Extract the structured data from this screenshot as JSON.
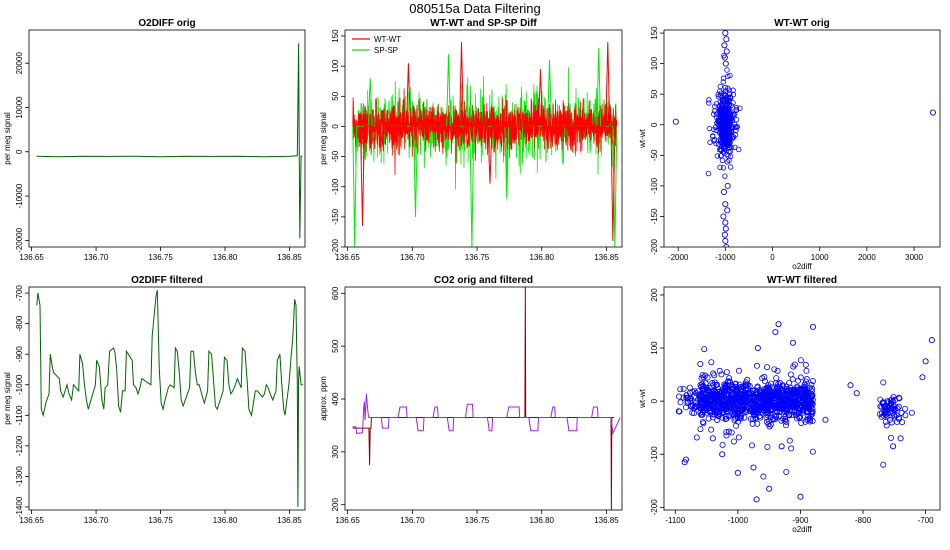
{
  "figure": {
    "title": "080515a   Data Filtering"
  },
  "colors": {
    "green": "#006400",
    "red": "#ff0000",
    "lime": "#00ee00",
    "blue": "#0000ff",
    "purple": "#a020f0",
    "darkred": "#8b0000",
    "axis": "#000000"
  },
  "chart_data": [
    {
      "id": "p1",
      "type": "line",
      "title": "O2DIFF orig",
      "xlabel": "",
      "ylabel": "per meg signal",
      "xlim": [
        136.648,
        136.862
      ],
      "ylim": [
        -21500,
        27500
      ],
      "xticks": [
        136.65,
        136.7,
        136.75,
        136.8,
        136.85
      ],
      "xtick_labels": [
        "136.65",
        "136.70",
        "136.75",
        "136.80",
        "136.85"
      ],
      "yticks": [
        -20000,
        -10000,
        0,
        10000,
        20000
      ],
      "ytick_labels": [
        "-20000",
        "-10000",
        "0",
        "10000",
        "20000"
      ],
      "series": [
        {
          "name": "O2DIFF",
          "color": "#006400",
          "x": [
            136.654,
            136.67,
            136.69,
            136.71,
            136.73,
            136.75,
            136.77,
            136.79,
            136.81,
            136.83,
            136.85,
            136.856,
            136.857,
            136.858,
            136.859,
            136.86
          ],
          "y": [
            -1000,
            -1100,
            -1000,
            -1050,
            -1000,
            -1100,
            -1000,
            -1050,
            -1000,
            -1100,
            -1000,
            -900,
            24500,
            -19500,
            -1000,
            -950
          ]
        }
      ]
    },
    {
      "id": "p2",
      "type": "line",
      "title": "WT-WT and SP-SP Diff",
      "xlabel": "",
      "ylabel": "per meg signal",
      "xlim": [
        136.648,
        136.862
      ],
      "ylim": [
        -200,
        160
      ],
      "xticks": [
        136.65,
        136.7,
        136.75,
        136.8,
        136.85
      ],
      "xtick_labels": [
        "136.65",
        "136.70",
        "136.75",
        "136.80",
        "136.85"
      ],
      "yticks": [
        -200,
        -150,
        -100,
        -50,
        0,
        50,
        100,
        150
      ],
      "ytick_labels": [
        "-200",
        "-150",
        "-100",
        "-50",
        "0",
        "50",
        "100",
        "150"
      ],
      "legend": {
        "position": "top-left",
        "entries": [
          "WT-WT",
          "SP-SP"
        ]
      },
      "series": [
        {
          "name": "SP-SP",
          "color": "#00ee00",
          "x": [
            136.654,
            136.6555,
            136.657,
            136.666,
            136.6675,
            136.669,
            136.701,
            136.7025,
            136.704,
            136.7265,
            136.728,
            136.7295,
            136.7445,
            136.746,
            136.7475,
            136.7715,
            136.773,
            136.7745,
            136.8045,
            136.806,
            136.8075,
            136.8425,
            136.844,
            136.8455,
            136.855,
            136.8565,
            136.858
          ],
          "y": [
            0,
            -200,
            0,
            0,
            80,
            0,
            0,
            -150,
            0,
            0,
            120,
            0,
            0,
            -200,
            0,
            0,
            -120,
            0,
            0,
            110,
            0,
            0,
            130,
            0,
            0,
            -200,
            0
          ]
        },
        {
          "name": "WT-WT",
          "color": "#ff0000",
          "x": [
            136.66,
            136.6615,
            136.663,
            136.6955,
            136.697,
            136.6985,
            136.7365,
            136.738,
            136.7395,
            136.7585,
            136.76,
            136.7615,
            136.7975,
            136.799,
            136.8005,
            136.8495,
            136.851,
            136.8525,
            136.8535,
            136.855,
            136.8565
          ],
          "y": [
            0,
            -165,
            0,
            0,
            105,
            0,
            0,
            140,
            0,
            0,
            -95,
            0,
            0,
            95,
            0,
            0,
            140,
            0,
            0,
            -190,
            0
          ]
        }
      ]
    },
    {
      "id": "p3",
      "type": "scatter",
      "title": "WT-WT orig",
      "xlabel": "o2diff",
      "ylabel": "wt-wt",
      "xlim": [
        -2300,
        3550
      ],
      "ylim": [
        -200,
        155
      ],
      "xticks": [
        -2000,
        -1000,
        0,
        1000,
        2000,
        3000
      ],
      "xtick_labels": [
        "-2000",
        "-1000",
        "0",
        "1000",
        "2000",
        "3000"
      ],
      "yticks": [
        -200,
        -150,
        -100,
        -50,
        0,
        50,
        100,
        150
      ],
      "ytick_labels": [
        "-200",
        "-150",
        "-100",
        "-50",
        "0",
        "50",
        "100",
        "150"
      ],
      "series": [
        {
          "name": "wt-wt vs o2diff",
          "color": "#0000ff",
          "x": [
            -2050,
            3400,
            -1000,
            -980,
            -1020,
            -970,
            -1010,
            -990,
            -950,
            -1030,
            -1000,
            -960,
            -1040,
            -1000,
            -990,
            -1010,
            -1000,
            -980
          ],
          "y": [
            5,
            20,
            150,
            140,
            130,
            120,
            110,
            100,
            -100,
            -110,
            -130,
            -140,
            -150,
            -160,
            -170,
            -180,
            -190,
            -200
          ]
        }
      ]
    },
    {
      "id": "p4",
      "type": "line",
      "title": "O2DIFF filtered",
      "xlabel": "",
      "ylabel": "per meg signal",
      "xlim": [
        136.648,
        136.862
      ],
      "ylim": [
        -1410,
        -680
      ],
      "xticks": [
        136.65,
        136.7,
        136.75,
        136.8,
        136.85
      ],
      "xtick_labels": [
        "136.65",
        "136.70",
        "136.75",
        "136.80",
        "136.85"
      ],
      "yticks": [
        -1400,
        -1300,
        -1200,
        -1100,
        -1000,
        -900,
        -800,
        -700
      ],
      "ytick_labels": [
        "-1400",
        "-1300",
        "-1200",
        "-1100",
        "-1000",
        "-900",
        "-800",
        "-700"
      ],
      "series": [
        {
          "name": "O2DIFF filtered",
          "color": "#006400",
          "x": [
            136.654,
            136.655,
            136.6565,
            136.6575,
            136.659,
            136.661,
            136.6635,
            136.6645,
            136.666,
            136.667,
            136.6715,
            136.6725,
            136.6745,
            136.676,
            136.6775,
            136.679,
            136.681,
            136.6825,
            136.6865,
            136.6875,
            136.6895,
            136.691,
            136.6925,
            136.694,
            136.6995,
            136.7005,
            136.7025,
            136.7045,
            136.706,
            136.707,
            136.709,
            136.7105,
            136.7135,
            136.7145,
            136.716,
            136.7175,
            136.719,
            136.7205,
            136.7225,
            136.7235,
            136.728,
            136.729,
            136.731,
            136.7325,
            136.734,
            136.7355,
            136.7425,
            136.7435,
            136.7465,
            136.7475,
            136.749,
            136.7505,
            136.752,
            136.7535,
            136.756,
            136.7575,
            136.7605,
            136.7615,
            136.763,
            136.7645,
            136.766,
            136.7675,
            136.7725,
            136.7735,
            136.7755,
            136.777,
            136.7785,
            136.78,
            136.7825,
            136.784,
            136.7865,
            136.7875,
            136.7895,
            136.791,
            136.7925,
            136.794,
            136.7985,
            136.7995,
            136.8015,
            136.803,
            136.8045,
            136.806,
            136.808,
            136.8095,
            136.8125,
            136.8135,
            136.8155,
            136.817,
            136.8185,
            136.8205,
            136.8235,
            136.825,
            136.829,
            136.8305,
            136.832,
            136.8335,
            136.835,
            136.837,
            136.8395,
            136.8405,
            136.8425,
            136.844,
            136.8455,
            136.8465,
            136.848,
            136.8495,
            136.851,
            136.8525,
            136.854,
            136.855,
            136.8555,
            136.856,
            136.8565,
            136.857,
            136.8575,
            136.859,
            136.8605
          ],
          "y": [
            -740,
            -700,
            -740,
            -1080,
            -1100,
            -1060,
            -1030,
            -900,
            -940,
            -960,
            -980,
            -1020,
            -1040,
            -1020,
            -1000,
            -1030,
            -1050,
            -1000,
            -1020,
            -900,
            -930,
            -1000,
            -1050,
            -1080,
            -1000,
            -920,
            -940,
            -1050,
            -1080,
            -1010,
            -1000,
            -890,
            -880,
            -890,
            -950,
            -1070,
            -1090,
            -1020,
            -1020,
            -890,
            -920,
            -1000,
            -1010,
            -1030,
            -1010,
            -980,
            -1000,
            -840,
            -710,
            -690,
            -950,
            -1060,
            -1080,
            -1050,
            -1010,
            -1000,
            -1010,
            -880,
            -890,
            -960,
            -1050,
            -1070,
            -1010,
            -890,
            -890,
            -960,
            -1000,
            -1000,
            -1040,
            -1060,
            -1020,
            -890,
            -900,
            -980,
            -1070,
            -1080,
            -1020,
            -910,
            -920,
            -1000,
            -1030,
            -1020,
            -1000,
            -980,
            -1010,
            -880,
            -890,
            -980,
            -1080,
            -1100,
            -1020,
            -1020,
            -1040,
            -1030,
            -1000,
            -1010,
            -1030,
            -1050,
            -1020,
            -920,
            -900,
            -1000,
            -1080,
            -1100,
            -1050,
            -1000,
            -920,
            -850,
            -720,
            -740,
            -860,
            -990,
            -1400,
            -980,
            -940,
            -1000,
            -1000
          ]
        }
      ]
    },
    {
      "id": "p5",
      "type": "line",
      "title": "CO2 orig and filtered",
      "xlabel": "",
      "ylabel": "approx. ppm",
      "xlim": [
        136.648,
        136.862
      ],
      "ylim": [
        190,
        612
      ],
      "xticks": [
        136.65,
        136.7,
        136.75,
        136.8,
        136.85
      ],
      "xtick_labels": [
        "136.65",
        "136.70",
        "136.75",
        "136.80",
        "136.85"
      ],
      "yticks": [
        200,
        300,
        400,
        500,
        600
      ],
      "ytick_labels": [
        "200",
        "300",
        "400",
        "500",
        "600"
      ],
      "series": [
        {
          "name": "CO2 orig",
          "color": "#8b0000",
          "x": [
            136.654,
            136.6665,
            136.667,
            136.6675,
            136.668,
            136.6685,
            136.669,
            136.787,
            136.7873,
            136.7876,
            136.79,
            136.8535,
            136.8538,
            136.8541,
            136.856
          ],
          "y": [
            345,
            345,
            275,
            345,
            345,
            365,
            365,
            365,
            612,
            365,
            365,
            365,
            190,
            365,
            365
          ]
        },
        {
          "name": "CO2 filtered",
          "color": "#a020f0",
          "x": [
            136.654,
            136.6545,
            136.6565,
            136.657,
            136.6615,
            136.662,
            136.6625,
            136.663,
            136.6635,
            136.6645,
            136.6655,
            136.666,
            136.6665,
            136.676,
            136.677,
            136.6815,
            136.682,
            136.689,
            136.6905,
            136.6955,
            136.696,
            136.703,
            136.7045,
            136.7085,
            136.709,
            136.716,
            136.7175,
            136.7195,
            136.72,
            136.727,
            136.7285,
            136.7315,
            136.732,
            136.741,
            136.7425,
            136.7465,
            136.747,
            136.758,
            136.7595,
            136.7615,
            136.762,
            136.773,
            136.7745,
            136.7825,
            136.783,
            136.79,
            136.7915,
            136.797,
            136.7975,
            136.807,
            136.8085,
            136.81,
            136.8105,
            136.8195,
            136.821,
            136.827,
            136.8275,
            136.8385,
            136.84,
            136.843,
            136.8435,
            136.8535,
            136.855,
            136.8605
          ],
          "y": [
            345,
            348,
            347,
            335,
            336,
            360,
            385,
            395,
            360,
            410,
            380,
            370,
            365,
            365,
            345,
            345,
            365,
            365,
            385,
            385,
            365,
            365,
            340,
            340,
            365,
            365,
            385,
            385,
            365,
            365,
            340,
            340,
            365,
            365,
            390,
            390,
            365,
            365,
            340,
            340,
            365,
            365,
            385,
            385,
            365,
            365,
            340,
            340,
            365,
            365,
            385,
            385,
            365,
            365,
            340,
            340,
            365,
            365,
            385,
            385,
            365,
            365,
            335,
            365
          ]
        }
      ]
    },
    {
      "id": "p6",
      "type": "scatter",
      "title": "WT-WT filtered",
      "xlabel": "o2diff",
      "ylabel": "wt-wt",
      "xlim": [
        -1118,
        -677
      ],
      "ylim": [
        -205,
        215
      ],
      "xticks": [
        -1100,
        -1000,
        -900,
        -800,
        -700
      ],
      "xtick_labels": [
        "-1100",
        "-1000",
        "-900",
        "-800",
        "-700"
      ],
      "yticks": [
        -200,
        -100,
        0,
        100,
        200
      ],
      "ytick_labels": [
        "-200",
        "-100",
        "0",
        "100",
        "200"
      ],
      "series": [
        {
          "name": "wt-wt vs o2diff filtered",
          "color": "#0000ff",
          "x": [
            -935,
            -880,
            -940,
            -968,
            -1083,
            -1085,
            -690,
            -740,
            -752,
            -1000,
            -970,
            -900,
            -860,
            -820,
            -810,
            -950,
            -975,
            -1040,
            -1060,
            -1025,
            -930,
            -912,
            -700,
            -705
          ],
          "y": [
            145,
            140,
            130,
            100,
            -110,
            -115,
            115,
            -70,
            -85,
            -135,
            -185,
            -180,
            -35,
            30,
            15,
            -165,
            -125,
            -70,
            70,
            -100,
            -85,
            110,
            75,
            45
          ]
        }
      ]
    }
  ]
}
